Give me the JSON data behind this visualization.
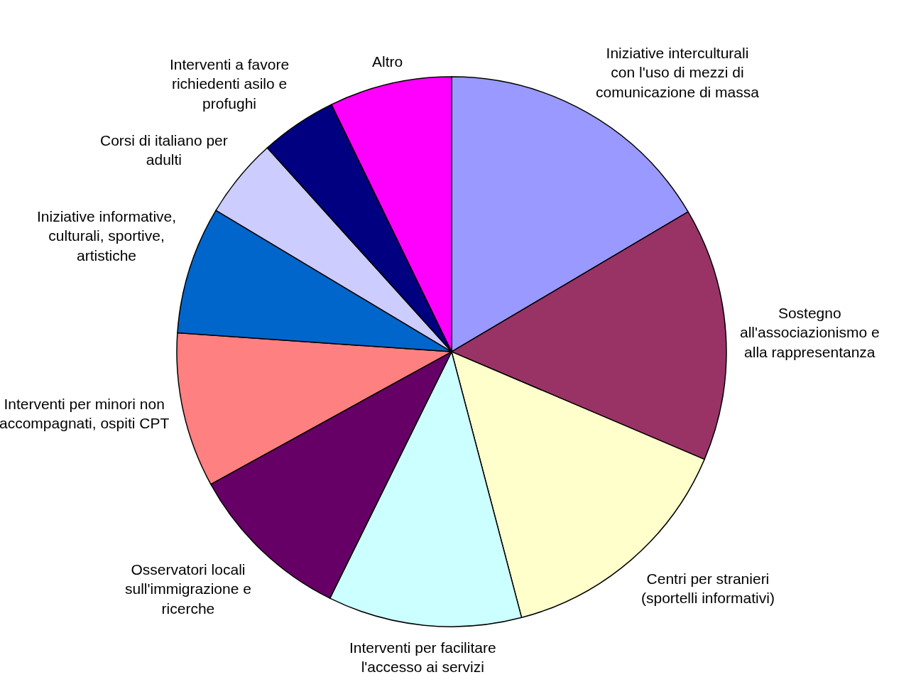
{
  "chart_data": {
    "type": "pie",
    "categories": [
      "Iniziative interculturali con l'uso di mezzi di comunicazione di massa",
      "Sostegno all'associazionismo e alla rappresentanza",
      "Centri per stranieri (sportelli informativi)",
      "Interventi per facilitare l'accesso ai servizi",
      "Osservatori locali sull'immigrazione e ricerche",
      "Interventi per minori non accompagnati, ospiti CPT",
      "Iniziative informative, culturali, sportive, artistiche",
      "Corsi di italiano per adulti",
      "Interventi a favore richiedenti asilo e profughi",
      "Altro"
    ],
    "values": [
      16.5,
      14.9,
      14.5,
      11.4,
      9.7,
      9.1,
      7.5,
      4.7,
      4.5,
      7.2
    ],
    "colors": [
      "#9999ff",
      "#993366",
      "#ffffcc",
      "#ccffff",
      "#660066",
      "#ff8080",
      "#0066cc",
      "#ccccff",
      "#000080",
      "#ff00ff"
    ],
    "legend": false
  }
}
